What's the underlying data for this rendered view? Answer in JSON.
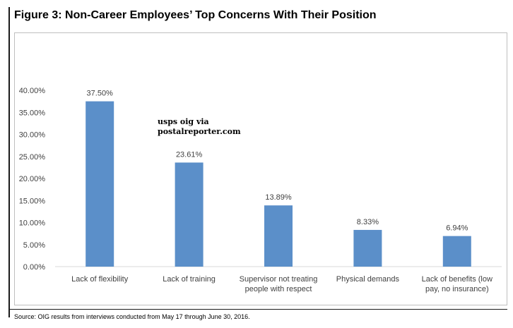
{
  "title": "Figure 3: Non-Career Employees’ Top Concerns With Their Position",
  "source": "Source: OIG results from interviews conducted from May 17 through June 30, 2016.",
  "watermark": [
    "usps oig via",
    "postalreporter.com"
  ],
  "colors": {
    "bar": "#5b8fc9",
    "axis": "#d9d9d9",
    "text": "#404040"
  },
  "chart_data": {
    "type": "bar",
    "title": "Figure 3: Non-Career Employees’ Top Concerns With Their Position",
    "xlabel": "",
    "ylabel": "",
    "ylim": [
      0,
      40
    ],
    "grid": false,
    "y_ticks": [
      0,
      5,
      10,
      15,
      20,
      25,
      30,
      35,
      40
    ],
    "y_tick_labels": [
      "0.00%",
      "5.00%",
      "10.00%",
      "15.00%",
      "20.00%",
      "25.00%",
      "30.00%",
      "35.00%",
      "40.00%"
    ],
    "categories": [
      [
        "Lack of flexibility"
      ],
      [
        "Lack of training"
      ],
      [
        "Supervisor not treating",
        "people with respect"
      ],
      [
        "Physical demands"
      ],
      [
        "Lack of benefits (low",
        "pay, no insurance)"
      ]
    ],
    "values": [
      37.5,
      23.61,
      13.89,
      8.33,
      6.94
    ],
    "value_labels": [
      "37.50%",
      "23.61%",
      "13.89%",
      "8.33%",
      "6.94%"
    ]
  }
}
